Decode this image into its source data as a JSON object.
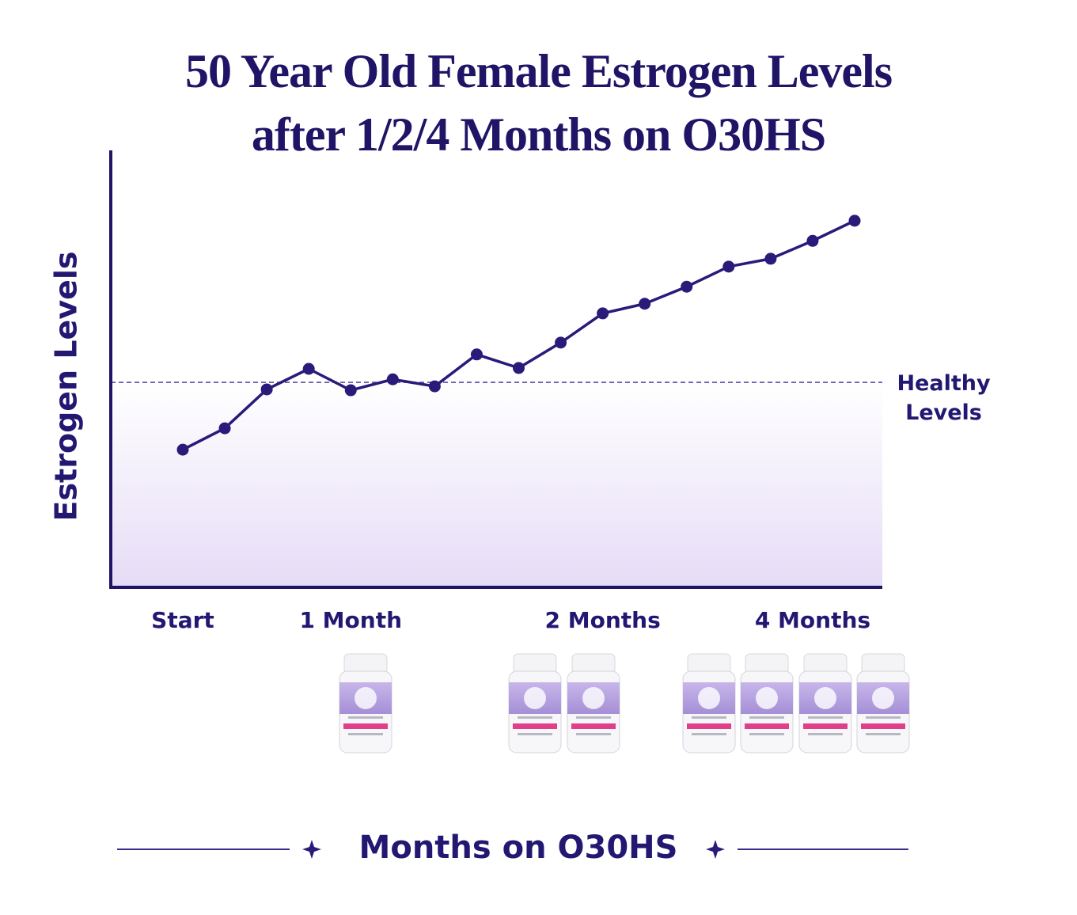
{
  "chart_data": {
    "type": "line",
    "title": "50 Year Old Female Estrogen Levels\nafter 1/2/4 Months on O30HS",
    "y_label": "Estrogen Levels",
    "x_label": "Months on O30HS",
    "categories": [
      "Start",
      null,
      null,
      null,
      "1 Month",
      null,
      null,
      null,
      null,
      null,
      "2 Months",
      null,
      null,
      null,
      null,
      "4 Months",
      null
    ],
    "series": [
      {
        "name": "Estrogen Levels",
        "color": "#2a1a7a",
        "values": [
          31.5,
          36.4,
          45.3,
          50.0,
          45.1,
          47.6,
          46.0,
          53.3,
          50.2,
          56.0,
          62.7,
          64.9,
          68.8,
          73.4,
          75.2,
          79.3,
          83.9
        ]
      }
    ],
    "ylim": [
      0,
      100
    ],
    "reference_line": {
      "label": "Healthy\nLevels",
      "value": 46.9,
      "color": "#5a4aa8"
    }
  }
}
